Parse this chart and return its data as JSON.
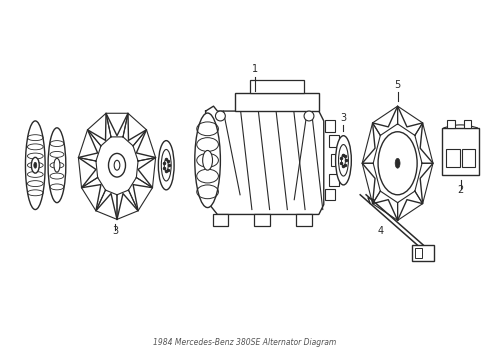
{
  "title": "1984 Mercedes-Benz 380SE Alternator Diagram",
  "bg_color": "#ffffff",
  "line_color": "#2a2a2a",
  "line_width": 1.0,
  "fig_width": 4.9,
  "fig_height": 3.6,
  "dpi": 100,
  "layout": {
    "xlim": [
      0,
      490
    ],
    "ylim": [
      0,
      360
    ]
  }
}
